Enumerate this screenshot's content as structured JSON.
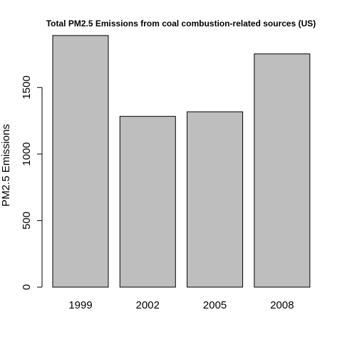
{
  "chart_data": {
    "type": "bar",
    "title": "Total PM2.5 Emissions from coal combustion-related sources (US)",
    "xlabel": "",
    "ylabel": "PM2.5 Emissions",
    "categories": [
      "1999",
      "2002",
      "2005",
      "2008"
    ],
    "values": [
      1890,
      1283,
      1317,
      1752
    ],
    "ylim": [
      0,
      1900
    ],
    "yticks": [
      0,
      500,
      1000,
      1500
    ],
    "grid": false,
    "colors": {
      "bar_fill": "#bebebe",
      "bar_stroke": "#000000"
    }
  }
}
